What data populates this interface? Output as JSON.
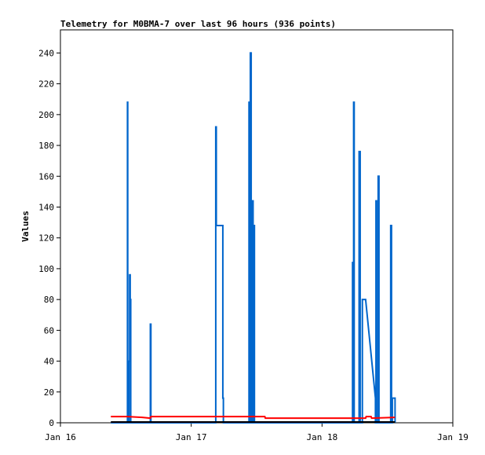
{
  "chart_data": {
    "type": "line",
    "title": "Telemetry for M0BMA-7 over last 96 hours (936 points)",
    "xlabel": "",
    "ylabel": "Values",
    "x_tick_labels": [
      "Jan 16",
      "Jan 17",
      "Jan 18",
      "Jan 19"
    ],
    "x_ticks_hours": [
      0,
      24,
      48,
      72
    ],
    "xlim_hours": [
      0,
      72
    ],
    "ylim": [
      0,
      255
    ],
    "y_ticks": [
      0,
      20,
      40,
      60,
      80,
      100,
      120,
      140,
      160,
      180,
      200,
      220,
      240
    ],
    "grid": false,
    "legend": "none",
    "series": [
      {
        "color": "#0066cc",
        "points": [
          [
            9.25,
            0
          ],
          [
            12.3,
            0
          ],
          [
            12.3,
            208
          ],
          [
            12.35,
            208
          ],
          [
            12.35,
            0
          ],
          [
            12.6,
            0
          ],
          [
            12.6,
            40
          ],
          [
            12.7,
            40
          ],
          [
            12.7,
            96
          ],
          [
            12.8,
            96
          ],
          [
            12.8,
            80
          ],
          [
            12.9,
            80
          ],
          [
            12.9,
            0
          ],
          [
            16.5,
            0
          ],
          [
            16.5,
            64
          ],
          [
            16.6,
            64
          ],
          [
            16.6,
            0
          ],
          [
            28.5,
            0
          ],
          [
            28.5,
            192
          ],
          [
            28.6,
            192
          ],
          [
            28.6,
            128
          ],
          [
            29.8,
            128
          ],
          [
            29.8,
            16
          ],
          [
            29.9,
            16
          ],
          [
            29.9,
            0
          ],
          [
            34.6,
            0
          ],
          [
            34.6,
            208
          ],
          [
            34.75,
            208
          ],
          [
            34.75,
            0
          ],
          [
            34.85,
            0
          ],
          [
            34.85,
            240
          ],
          [
            35.0,
            240
          ],
          [
            35.0,
            0
          ],
          [
            35.25,
            0
          ],
          [
            35.25,
            144
          ],
          [
            35.35,
            144
          ],
          [
            35.35,
            0
          ],
          [
            35.5,
            0
          ],
          [
            35.5,
            128
          ],
          [
            35.6,
            128
          ],
          [
            35.6,
            0
          ],
          [
            53.6,
            0
          ],
          [
            53.6,
            104
          ],
          [
            53.7,
            104
          ],
          [
            53.7,
            0
          ],
          [
            53.8,
            0
          ],
          [
            53.8,
            208
          ],
          [
            53.9,
            208
          ],
          [
            53.9,
            0
          ],
          [
            54.8,
            0
          ],
          [
            54.8,
            176
          ],
          [
            55.0,
            176
          ],
          [
            55.0,
            0
          ],
          [
            55.4,
            0
          ],
          [
            55.4,
            80
          ],
          [
            56.0,
            80
          ],
          [
            57.8,
            16
          ],
          [
            57.8,
            0
          ],
          [
            57.9,
            0
          ],
          [
            57.9,
            144
          ],
          [
            58.0,
            144
          ],
          [
            58.0,
            0
          ],
          [
            58.3,
            0
          ],
          [
            58.3,
            160
          ],
          [
            58.45,
            160
          ],
          [
            58.45,
            0
          ],
          [
            60.6,
            0
          ],
          [
            60.6,
            128
          ],
          [
            60.75,
            128
          ],
          [
            60.75,
            0
          ],
          [
            60.9,
            0
          ],
          [
            60.9,
            16
          ],
          [
            61.4,
            16
          ],
          [
            61.4,
            0
          ]
        ]
      },
      {
        "color": "#ff0000",
        "points": [
          [
            9.25,
            4
          ],
          [
            12.3,
            4
          ],
          [
            15.0,
            3.5
          ],
          [
            16.5,
            3
          ],
          [
            16.55,
            3.8
          ],
          [
            16.6,
            4
          ],
          [
            37.5,
            4
          ],
          [
            37.6,
            3
          ],
          [
            56.0,
            3
          ],
          [
            56.1,
            4
          ],
          [
            57.0,
            4
          ],
          [
            57.1,
            3
          ],
          [
            61.4,
            3.5
          ]
        ]
      },
      {
        "color": "#000000",
        "points": [
          [
            9.25,
            0.5
          ],
          [
            61.4,
            0.5
          ]
        ]
      }
    ]
  }
}
